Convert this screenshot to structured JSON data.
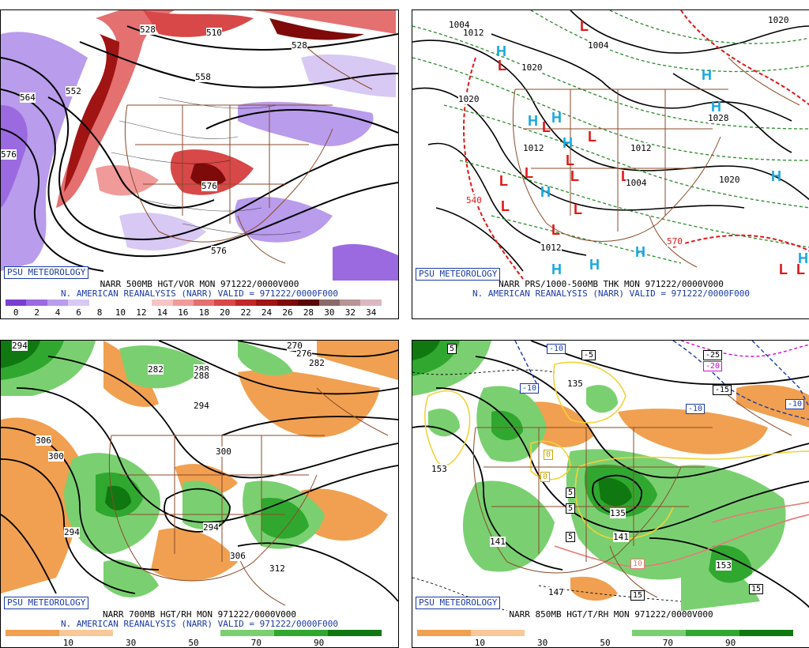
{
  "panels": [
    {
      "id": "vort",
      "badge": "PSU METEOROLOGY",
      "title_line1": "NARR 500MB HGT/VOR MON 971222/0000V000",
      "title_line2": "N. AMERICAN REANALYSIS (NARR) VALID = 971222/0000F000",
      "colorbar": {
        "labels": [
          "0",
          "2",
          "4",
          "6",
          "8",
          "10",
          "12",
          "14",
          "16",
          "18",
          "20",
          "22",
          "24",
          "26",
          "28",
          "30",
          "32",
          "34"
        ],
        "colors": [
          "#7a3fd0",
          "#9c6ae0",
          "#b99cec",
          "#d8c8f4",
          "#ffffff",
          "#ffffff",
          "#ffffff",
          "#f6c4c4",
          "#f09a9a",
          "#e47070",
          "#d84848",
          "#c02828",
          "#a01414",
          "#7e0a0a",
          "#5a0404",
          "#8a6a6a",
          "#b89494",
          "#dcb8c0"
        ]
      },
      "contour_labels": [
        "528",
        "510",
        "528",
        "558",
        "564",
        "552",
        "576",
        "576",
        "576"
      ]
    },
    {
      "id": "prs",
      "badge": "PSU METEOROLOGY",
      "title_line1": "NARR PRS/1000-500MB THK MON 971222/0000V000",
      "title_line2": "N. AMERICAN REANALYSIS (NARR) VALID = 971222/0000F000",
      "contour_labels": [
        "1004",
        "1012",
        "1020",
        "1004",
        "1020",
        "1028",
        "1012",
        "1012",
        "1004",
        "1020",
        "1012",
        "1020",
        "540",
        "570"
      ],
      "high_symbol": "H",
      "low_symbol": "L"
    },
    {
      "id": "rh700",
      "badge": "PSU METEOROLOGY",
      "title_line1": "NARR 700MB HGT/RH MON 971222/0000V000",
      "title_line2": "N. AMERICAN REANALYSIS (NARR) VALID = 971222/0000F000",
      "colorbar": {
        "labels": [
          "10",
          "30",
          "50",
          "70",
          "90"
        ],
        "colors": [
          "#f0a050",
          "#f8c898",
          "#ffffff",
          "#ffffff",
          "#7ad070",
          "#30a830",
          "#107810"
        ]
      },
      "contour_labels": [
        "294",
        "270",
        "276",
        "282",
        "288",
        "282",
        "294",
        "306",
        "300",
        "294",
        "300",
        "294",
        "306",
        "312",
        "288"
      ]
    },
    {
      "id": "t850",
      "badge": "PSU METEOROLOGY",
      "title_line1": "NARR 850MB HGT/T/RH MON 971222/0000V000",
      "title_line2": "",
      "colorbar": {
        "labels": [
          "10",
          "30",
          "50",
          "70",
          "90"
        ],
        "colors": [
          "#f0a050",
          "#f8c898",
          "#ffffff",
          "#ffffff",
          "#7ad070",
          "#30a830",
          "#107810"
        ]
      },
      "contour_labels": [
        "5",
        "-10",
        "-5",
        "-10",
        "-25",
        "-20",
        "-15",
        "-10",
        "-10",
        "135",
        "0",
        "0",
        "153",
        "5",
        "5",
        "135",
        "141",
        "141",
        "147",
        "10",
        "15",
        "153",
        "15",
        "5"
      ]
    }
  ],
  "colors": {
    "title_blue": "#1a3aa8",
    "border_brown": "#8a4a2a",
    "high_blue": "#18a8e0",
    "low_red": "#e01818"
  }
}
